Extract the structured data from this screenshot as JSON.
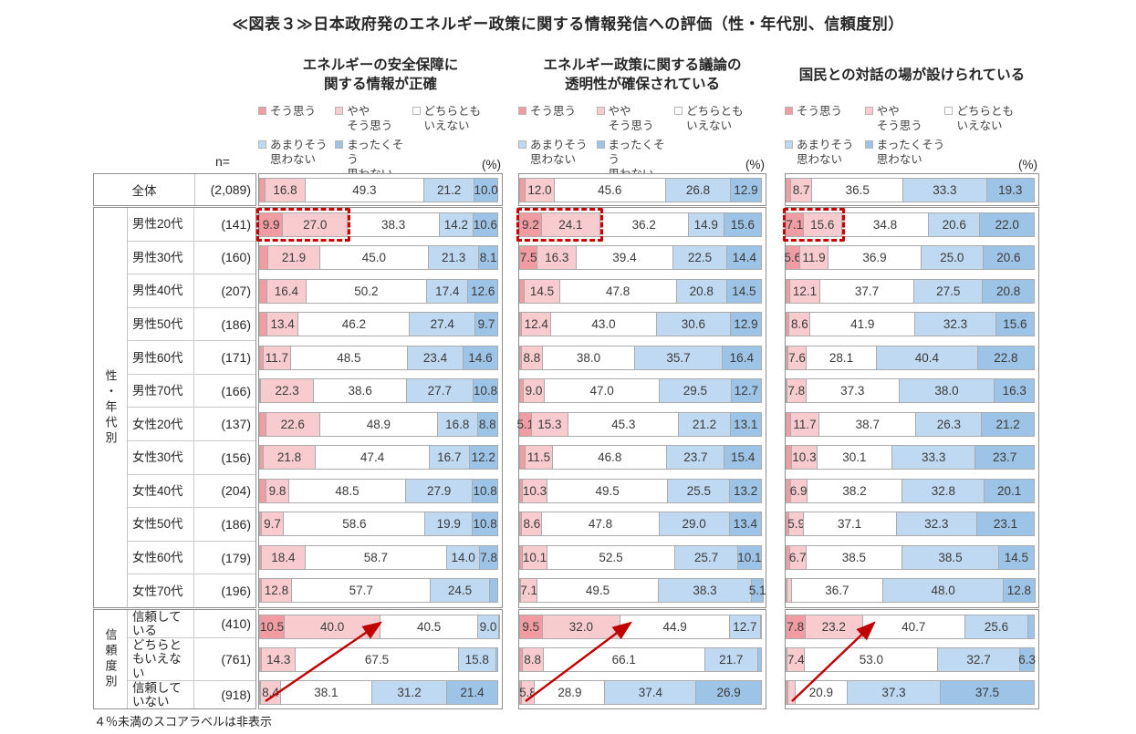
{
  "title": "≪図表３≫日本政府発のエネルギー政策に関する情報発信への評価（性・年代別、信頼度別）",
  "note": "４％未満のスコアラベルは非表示",
  "n_header": "n=",
  "unit_label": "(%)",
  "row_groups": [
    {
      "label": "性・年代別"
    },
    {
      "label": "信頼度別"
    }
  ],
  "colors": {
    "highlight_box": "#c80000",
    "arrow": "#c00000"
  },
  "chart_data": {
    "type": "bar",
    "variant": "horizontal-stacked-100pct",
    "unit": "%",
    "label_rule": "４％未満のスコアラベルは非表示",
    "series": [
      {
        "name": "そう思う",
        "color": "#F19CA2"
      },
      {
        "name": "ややそう思う",
        "color": "#F8CCCF"
      },
      {
        "name": "どちらともいえない",
        "color": "#FFFFFF"
      },
      {
        "name": "あまりそう思わない",
        "color": "#BFD9F2"
      },
      {
        "name": "まったくそう思わない",
        "color": "#9DC3E6"
      }
    ],
    "legend_labels": [
      [
        "そう思う"
      ],
      [
        "やや",
        "そう思う"
      ],
      [
        "どちらとも",
        "いえない"
      ],
      [
        "あまりそう",
        "思わない"
      ],
      [
        "まったくそう",
        "思わない"
      ]
    ],
    "categories": [
      "全体",
      "男性20代",
      "男性30代",
      "男性40代",
      "男性50代",
      "男性60代",
      "男性70代",
      "女性20代",
      "女性30代",
      "女性40代",
      "女性50代",
      "女性60代",
      "女性70代",
      "信頼している",
      "どちらともいえない",
      "信頼していない"
    ],
    "n_labels": [
      "(2,089)",
      "(141)",
      "(160)",
      "(207)",
      "(186)",
      "(171)",
      "(166)",
      "(137)",
      "(156)",
      "(204)",
      "(186)",
      "(179)",
      "(196)",
      "(410)",
      "(761)",
      "(918)"
    ],
    "charts": [
      {
        "title_lines": [
          "エネルギーの安全保障に",
          "関する情報が正確"
        ],
        "values": [
          [
            2.7,
            16.8,
            49.3,
            21.2,
            10.0
          ],
          [
            9.9,
            27.0,
            38.3,
            14.2,
            10.6
          ],
          [
            3.7,
            21.9,
            45.0,
            21.3,
            8.1
          ],
          [
            3.4,
            16.4,
            50.2,
            17.4,
            12.6
          ],
          [
            3.3,
            13.4,
            46.2,
            27.4,
            9.7
          ],
          [
            1.8,
            11.7,
            48.5,
            23.4,
            14.6
          ],
          [
            0.6,
            22.3,
            38.6,
            27.7,
            10.8
          ],
          [
            2.9,
            22.6,
            48.9,
            16.8,
            8.8
          ],
          [
            1.9,
            21.8,
            47.4,
            16.7,
            12.2
          ],
          [
            3.0,
            9.8,
            48.5,
            27.9,
            10.8
          ],
          [
            1.0,
            9.7,
            58.6,
            19.9,
            10.8
          ],
          [
            1.1,
            18.4,
            58.7,
            14.0,
            7.8
          ],
          [
            1.1,
            12.8,
            57.7,
            24.5,
            3.9
          ],
          [
            10.5,
            40.0,
            40.5,
            9.0,
            0.0
          ],
          [
            1.2,
            14.3,
            67.5,
            15.8,
            1.2
          ],
          [
            0.9,
            8.4,
            38.1,
            31.2,
            21.4
          ]
        ],
        "highlight": {
          "row_index": 1,
          "segments": [
            0,
            1
          ]
        },
        "arrow": {
          "from_row_index": 15,
          "to_row_index": 13,
          "to_fraction": 0.5
        }
      },
      {
        "title_lines": [
          "エネルギー政策に関する議論の",
          "透明性が確保されている"
        ],
        "values": [
          [
            2.7,
            12.0,
            45.6,
            26.8,
            12.9
          ],
          [
            9.2,
            24.1,
            36.2,
            14.9,
            15.6
          ],
          [
            7.5,
            16.3,
            39.4,
            22.5,
            14.4
          ],
          [
            2.4,
            14.5,
            47.8,
            20.8,
            14.5
          ],
          [
            1.1,
            12.4,
            43.0,
            30.6,
            12.9
          ],
          [
            1.1,
            8.8,
            38.0,
            35.7,
            16.4
          ],
          [
            1.8,
            9.0,
            47.0,
            29.5,
            12.7
          ],
          [
            5.1,
            15.3,
            45.3,
            21.2,
            13.1
          ],
          [
            2.6,
            11.5,
            46.8,
            23.7,
            15.4
          ],
          [
            1.5,
            10.3,
            49.5,
            25.5,
            13.2
          ],
          [
            1.2,
            8.6,
            47.8,
            29.0,
            13.4
          ],
          [
            1.6,
            10.1,
            52.5,
            25.7,
            10.1
          ],
          [
            0.0,
            7.1,
            49.5,
            38.3,
            5.1
          ],
          [
            9.5,
            32.0,
            44.9,
            12.7,
            0.9
          ],
          [
            1.4,
            8.8,
            66.1,
            21.7,
            2.0
          ],
          [
            1.0,
            5.8,
            28.9,
            37.4,
            26.9
          ]
        ],
        "highlight": {
          "row_index": 1,
          "segments": [
            0,
            1
          ]
        },
        "arrow": {
          "from_row_index": 15,
          "to_row_index": 13,
          "to_fraction": 0.45
        }
      },
      {
        "title_lines": [
          "国民との対話の場が設けられている"
        ],
        "values": [
          [
            2.2,
            8.7,
            36.5,
            33.3,
            19.3
          ],
          [
            7.1,
            15.6,
            34.8,
            20.6,
            22.0
          ],
          [
            5.6,
            11.9,
            36.9,
            25.0,
            20.6
          ],
          [
            1.9,
            12.1,
            37.7,
            27.5,
            20.8
          ],
          [
            1.6,
            8.6,
            41.9,
            32.3,
            15.6
          ],
          [
            1.1,
            7.6,
            28.1,
            40.4,
            22.8
          ],
          [
            0.6,
            7.8,
            37.3,
            38.0,
            16.3
          ],
          [
            2.1,
            11.7,
            38.7,
            26.3,
            21.2
          ],
          [
            2.6,
            10.3,
            30.1,
            33.3,
            23.7
          ],
          [
            2.0,
            6.9,
            38.2,
            32.8,
            20.1
          ],
          [
            1.6,
            5.9,
            37.1,
            32.3,
            23.1
          ],
          [
            1.8,
            6.7,
            38.5,
            38.5,
            14.5
          ],
          [
            0.5,
            2.0,
            36.7,
            48.0,
            12.8
          ],
          [
            7.8,
            23.2,
            40.7,
            25.6,
            2.7
          ],
          [
            0.6,
            7.4,
            53.0,
            32.7,
            6.3
          ],
          [
            1.0,
            3.3,
            20.9,
            37.3,
            37.5
          ]
        ],
        "highlight": {
          "row_index": 1,
          "segments": [
            0,
            1
          ]
        },
        "arrow": {
          "from_row_index": 15,
          "to_row_index": 13,
          "to_fraction": 0.35
        }
      }
    ]
  }
}
